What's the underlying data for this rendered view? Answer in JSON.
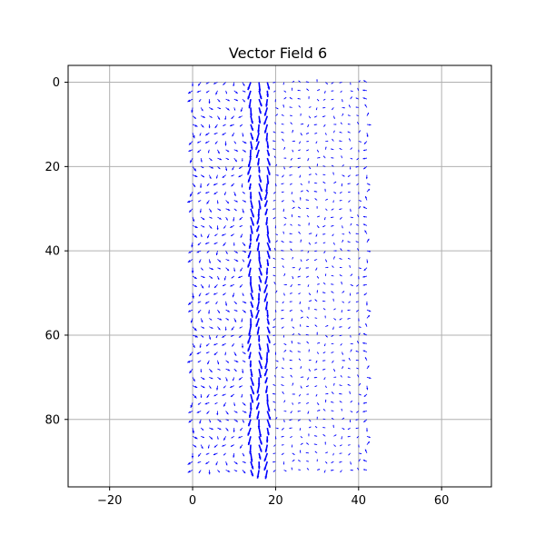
{
  "chart_data": {
    "type": "quiver",
    "title": "Vector Field 6",
    "xlabel": "",
    "ylabel": "",
    "xlim": [
      -30,
      72
    ],
    "ylim": [
      96,
      -4
    ],
    "y_inverted": true,
    "xticks": [
      -20,
      0,
      20,
      40,
      60
    ],
    "yticks": [
      0,
      20,
      40,
      60,
      80
    ],
    "grid": true,
    "arrow_color": "#0000ff",
    "grid_color": "#b0b0b0",
    "columns": [
      0,
      2,
      4,
      6,
      8,
      10,
      12,
      14,
      16,
      18,
      20,
      22,
      24,
      26,
      28,
      30,
      32,
      34,
      36,
      38,
      40,
      42
    ],
    "rows": [
      0,
      2,
      4,
      6,
      8,
      10,
      12,
      14,
      16,
      18,
      20,
      22,
      24,
      26,
      28,
      30,
      32,
      34,
      36,
      38,
      40,
      42,
      44,
      46,
      48,
      50,
      52,
      54,
      56,
      58,
      60,
      62,
      64,
      66,
      68,
      70,
      72,
      74,
      76,
      78,
      80,
      82,
      84,
      86,
      88,
      90,
      92
    ],
    "strong_band_x": [
      14,
      19
    ],
    "notes": "Dense grid of small blue arrows spanning x 0-42, y 0-92; strongest arrows in band x 14-19; arrows near x=0 and x=42 edges slightly larger."
  }
}
